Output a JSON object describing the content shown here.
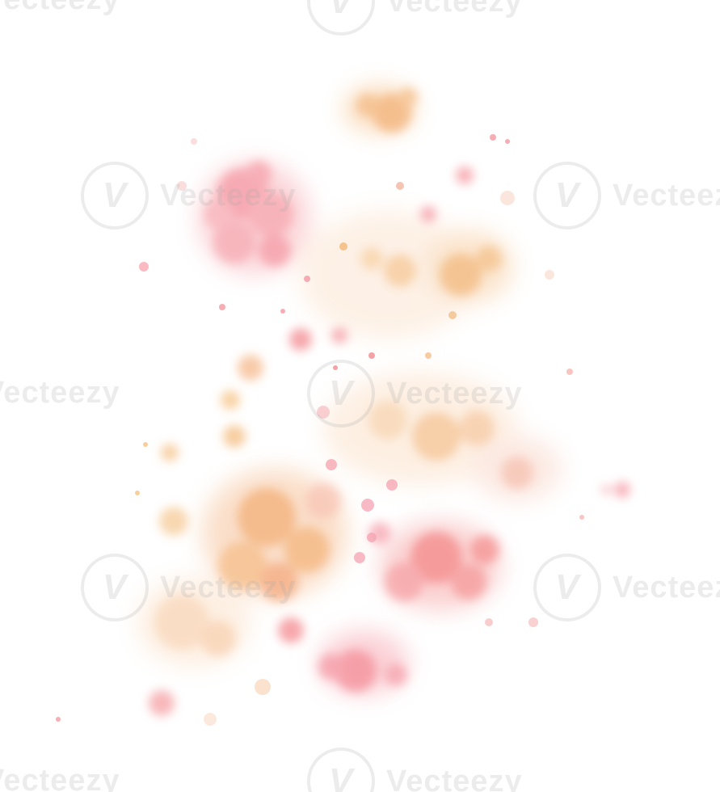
{
  "image": {
    "subject": "watercolor-splatter",
    "background": "#ffffff",
    "palette": {
      "pink": "#f4a0a8",
      "coral": "#f38a8a",
      "peach": "#f6c08a",
      "orange": "#f2b070",
      "blush": "#f8c6c6"
    }
  },
  "watermark": {
    "text": "Vecteezy",
    "icon": "vecteezy-logo-icon"
  }
}
